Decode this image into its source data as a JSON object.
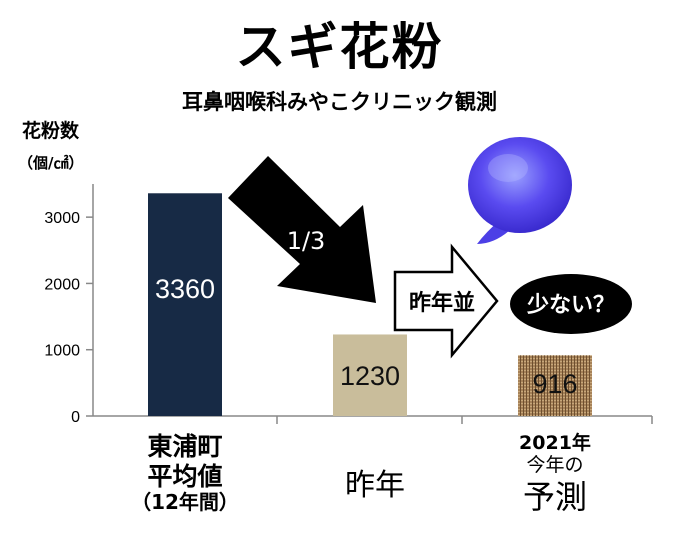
{
  "title": "スギ花粉",
  "subtitle": "耳鼻咽喉科みやこクリニック観測",
  "chart_data": {
    "type": "bar",
    "ylabel": "花粉数",
    "yunit": "（個/㎠）",
    "ylim": [
      0,
      3500
    ],
    "yticks": [
      0,
      1000,
      2000,
      3000
    ],
    "bars": [
      {
        "value": 3360,
        "label": "3360",
        "color": "#172a45",
        "label_color": "#ffffff",
        "texture": "solid"
      },
      {
        "value": 1230,
        "label": "1230",
        "color": "#c9bd9b",
        "label_color": "#111111",
        "texture": "solid"
      },
      {
        "value": 916,
        "label": "916",
        "color": "#a27d54",
        "label_color": "#111111",
        "texture": "burlap"
      }
    ],
    "categories": [
      {
        "lines": [
          "東浦町",
          "平均値",
          "（12年間）"
        ]
      },
      {
        "lines": [
          "昨年"
        ]
      },
      {
        "lines": [
          "2021年",
          "今年の",
          "予測"
        ]
      }
    ],
    "annotations": {
      "down_arrow": "1/3",
      "right_arrow": "昨年並",
      "bubble": "少ない？"
    }
  }
}
